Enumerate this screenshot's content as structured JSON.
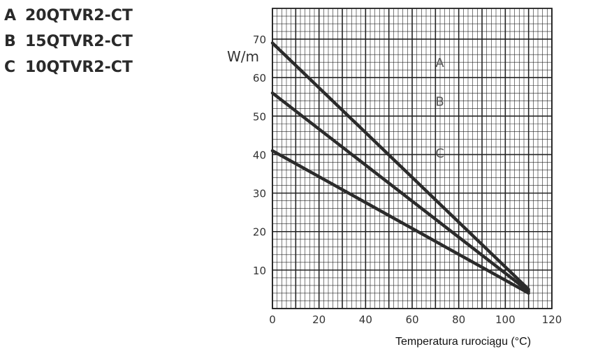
{
  "legend": [
    {
      "key": "A",
      "name": "20QTVR2-CT"
    },
    {
      "key": "B",
      "name": "15QTVR2-CT"
    },
    {
      "key": "C",
      "name": "10QTVR2-CT"
    }
  ],
  "chart_data": {
    "type": "line",
    "xlabel": "Temperatura rurociągu (°C)",
    "ylabel": "W/m",
    "xlim": [
      0,
      120
    ],
    "ylim": [
      0,
      78
    ],
    "xticks": [
      0,
      20,
      40,
      60,
      80,
      100,
      120
    ],
    "yticks": [
      10,
      20,
      30,
      40,
      50,
      60,
      70
    ],
    "grid": true,
    "series": [
      {
        "name": "A",
        "x": [
          0,
          110
        ],
        "y": [
          69,
          5
        ]
      },
      {
        "name": "B",
        "x": [
          0,
          110
        ],
        "y": [
          56,
          4.5
        ]
      },
      {
        "name": "C",
        "x": [
          0,
          110
        ],
        "y": [
          41,
          4
        ]
      }
    ],
    "colors": {
      "line": "#2b2b2b",
      "grid": "#222222"
    }
  }
}
